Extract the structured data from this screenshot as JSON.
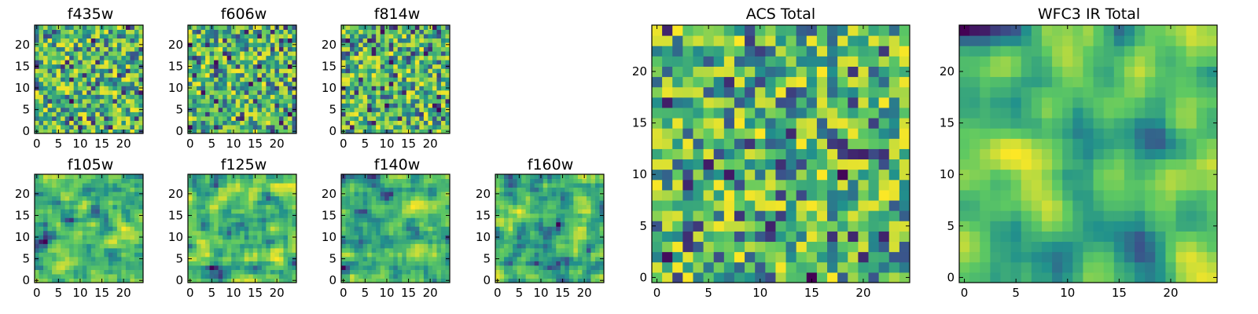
{
  "chart_data": [
    {
      "type": "heatmap",
      "title": "f435w",
      "xlim": [
        0,
        24
      ],
      "ylim": [
        0,
        24
      ],
      "xticks": [
        0,
        5,
        10,
        15,
        20
      ],
      "yticks": [
        0,
        5,
        10,
        15,
        20
      ],
      "seed": 435,
      "smooth": 0
    },
    {
      "type": "heatmap",
      "title": "f606w",
      "xlim": [
        0,
        24
      ],
      "ylim": [
        0,
        24
      ],
      "xticks": [
        0,
        5,
        10,
        15,
        20
      ],
      "yticks": [
        0,
        5,
        10,
        15,
        20
      ],
      "seed": 606,
      "smooth": 0
    },
    {
      "type": "heatmap",
      "title": "f814w",
      "xlim": [
        0,
        24
      ],
      "ylim": [
        0,
        24
      ],
      "xticks": [
        0,
        5,
        10,
        15,
        20
      ],
      "yticks": [
        0,
        5,
        10,
        15,
        20
      ],
      "seed": 814,
      "smooth": 0
    },
    {
      "type": "heatmap",
      "title": "f105w",
      "xlim": [
        0,
        24
      ],
      "ylim": [
        0,
        24
      ],
      "xticks": [
        0,
        5,
        10,
        15,
        20
      ],
      "yticks": [
        0,
        5,
        10,
        15,
        20
      ],
      "seed": 105,
      "smooth": 1
    },
    {
      "type": "heatmap",
      "title": "f125w",
      "xlim": [
        0,
        24
      ],
      "ylim": [
        0,
        24
      ],
      "xticks": [
        0,
        5,
        10,
        15,
        20
      ],
      "yticks": [
        0,
        5,
        10,
        15,
        20
      ],
      "seed": 125,
      "smooth": 1
    },
    {
      "type": "heatmap",
      "title": "f140w",
      "xlim": [
        0,
        24
      ],
      "ylim": [
        0,
        24
      ],
      "xticks": [
        0,
        5,
        10,
        15,
        20
      ],
      "yticks": [
        0,
        5,
        10,
        15,
        20
      ],
      "seed": 140,
      "smooth": 1
    },
    {
      "type": "heatmap",
      "title": "f160w",
      "xlim": [
        0,
        24
      ],
      "ylim": [
        0,
        24
      ],
      "xticks": [
        0,
        5,
        10,
        15,
        20
      ],
      "yticks": [
        0,
        5,
        10,
        15,
        20
      ],
      "seed": 160,
      "smooth": 1
    },
    {
      "type": "heatmap",
      "title": "ACS Total",
      "xlim": [
        0,
        24
      ],
      "ylim": [
        0,
        24
      ],
      "xticks": [
        0,
        5,
        10,
        15,
        20
      ],
      "yticks": [
        0,
        5,
        10,
        15,
        20
      ],
      "seed": 900,
      "smooth": 0
    },
    {
      "type": "heatmap",
      "title": "WFC3 IR Total",
      "xlim": [
        0,
        24
      ],
      "ylim": [
        0,
        24
      ],
      "xticks": [
        0,
        5,
        10,
        15,
        20
      ],
      "yticks": [
        0,
        5,
        10,
        15,
        20
      ],
      "seed": 901,
      "smooth": 2
    }
  ],
  "colormap": [
    "#440154",
    "#3b528b",
    "#21918c",
    "#5ec962",
    "#fde725"
  ]
}
